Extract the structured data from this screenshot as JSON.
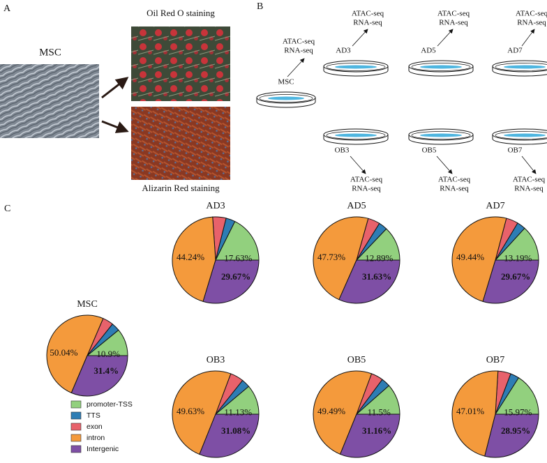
{
  "panel_a": {
    "label": "A",
    "title": "MSC",
    "top_caption": "Oil Red O staining",
    "bottom_caption": "Alizarin Red staining"
  },
  "panel_b": {
    "label": "B",
    "stages": [
      {
        "name": "MSC",
        "assays": [
          "ATAC-seq",
          "RNA-seq"
        ]
      },
      {
        "name": "AD3",
        "assays": [
          "ATAC-seq",
          "RNA-seq"
        ]
      },
      {
        "name": "AD5",
        "assays": [
          "ATAC-seq",
          "RNA-seq"
        ]
      },
      {
        "name": "AD7",
        "assays": [
          "ATAC-seq",
          "RNA-seq"
        ]
      },
      {
        "name": "OB3",
        "assays": [
          "ATAC-seq",
          "RNA-seq"
        ]
      },
      {
        "name": "OB5",
        "assays": [
          "ATAC-seq",
          "RNA-seq"
        ]
      },
      {
        "name": "OB7",
        "assays": [
          "ATAC-seq",
          "RNA-seq"
        ]
      }
    ]
  },
  "panel_c": {
    "label": "C"
  },
  "chart_data": [
    {
      "type": "pie",
      "title": "MSC",
      "categories": [
        "promoter-TSS",
        "TTS",
        "exon",
        "intron",
        "Intergenic"
      ],
      "colors": [
        "#92d07e",
        "#2e7db4",
        "#e8626b",
        "#f49a3c",
        "#7e4fa5"
      ],
      "values": [
        10.9,
        3.36,
        4.3,
        50.04,
        31.4
      ],
      "value_labels": [
        "10.9%",
        null,
        null,
        "50.04%",
        "31.4%"
      ],
      "legend": true
    },
    {
      "type": "pie",
      "title": "AD3",
      "categories": [
        "promoter-TSS",
        "TTS",
        "exon",
        "intron",
        "Intergenic"
      ],
      "colors": [
        "#92d07e",
        "#2e7db4",
        "#e8626b",
        "#f49a3c",
        "#7e4fa5"
      ],
      "values": [
        17.63,
        3.46,
        5.0,
        44.24,
        29.67
      ],
      "value_labels": [
        "17.63%",
        null,
        null,
        "44.24%",
        "29.67%"
      ],
      "legend": false
    },
    {
      "type": "pie",
      "title": "AD5",
      "categories": [
        "promoter-TSS",
        "TTS",
        "exon",
        "intron",
        "Intergenic"
      ],
      "colors": [
        "#92d07e",
        "#2e7db4",
        "#e8626b",
        "#f49a3c",
        "#7e4fa5"
      ],
      "values": [
        12.89,
        3.25,
        4.5,
        47.73,
        31.63
      ],
      "value_labels": [
        "12.89%",
        null,
        null,
        "47.73%",
        "31.63%"
      ],
      "legend": false
    },
    {
      "type": "pie",
      "title": "AD7",
      "categories": [
        "promoter-TSS",
        "TTS",
        "exon",
        "intron",
        "Intergenic"
      ],
      "colors": [
        "#92d07e",
        "#2e7db4",
        "#e8626b",
        "#f49a3c",
        "#7e4fa5"
      ],
      "values": [
        13.19,
        3.2,
        4.5,
        49.44,
        29.67
      ],
      "value_labels": [
        "13.19%",
        null,
        null,
        "49.44%",
        "29.67%"
      ],
      "legend": false
    },
    {
      "type": "pie",
      "title": "OB3",
      "categories": [
        "promoter-TSS",
        "TTS",
        "exon",
        "intron",
        "Intergenic"
      ],
      "colors": [
        "#92d07e",
        "#2e7db4",
        "#e8626b",
        "#f49a3c",
        "#7e4fa5"
      ],
      "values": [
        11.13,
        3.16,
        5.0,
        49.63,
        31.08
      ],
      "value_labels": [
        "11.13%",
        null,
        null,
        "49.63%",
        "31.08%"
      ],
      "legend": false
    },
    {
      "type": "pie",
      "title": "OB5",
      "categories": [
        "promoter-TSS",
        "TTS",
        "exon",
        "intron",
        "Intergenic"
      ],
      "colors": [
        "#92d07e",
        "#2e7db4",
        "#e8626b",
        "#f49a3c",
        "#7e4fa5"
      ],
      "values": [
        11.5,
        3.35,
        4.5,
        49.49,
        31.16
      ],
      "value_labels": [
        "11.5%",
        null,
        null,
        "49.49%",
        "31.16%"
      ],
      "legend": false
    },
    {
      "type": "pie",
      "title": "OB7",
      "categories": [
        "promoter-TSS",
        "TTS",
        "exon",
        "intron",
        "Intergenic"
      ],
      "colors": [
        "#92d07e",
        "#2e7db4",
        "#e8626b",
        "#f49a3c",
        "#7e4fa5"
      ],
      "values": [
        15.97,
        3.27,
        4.8,
        47.01,
        28.95
      ],
      "value_labels": [
        "15.97%",
        null,
        null,
        "47.01%",
        "28.95%"
      ],
      "legend": false
    }
  ]
}
